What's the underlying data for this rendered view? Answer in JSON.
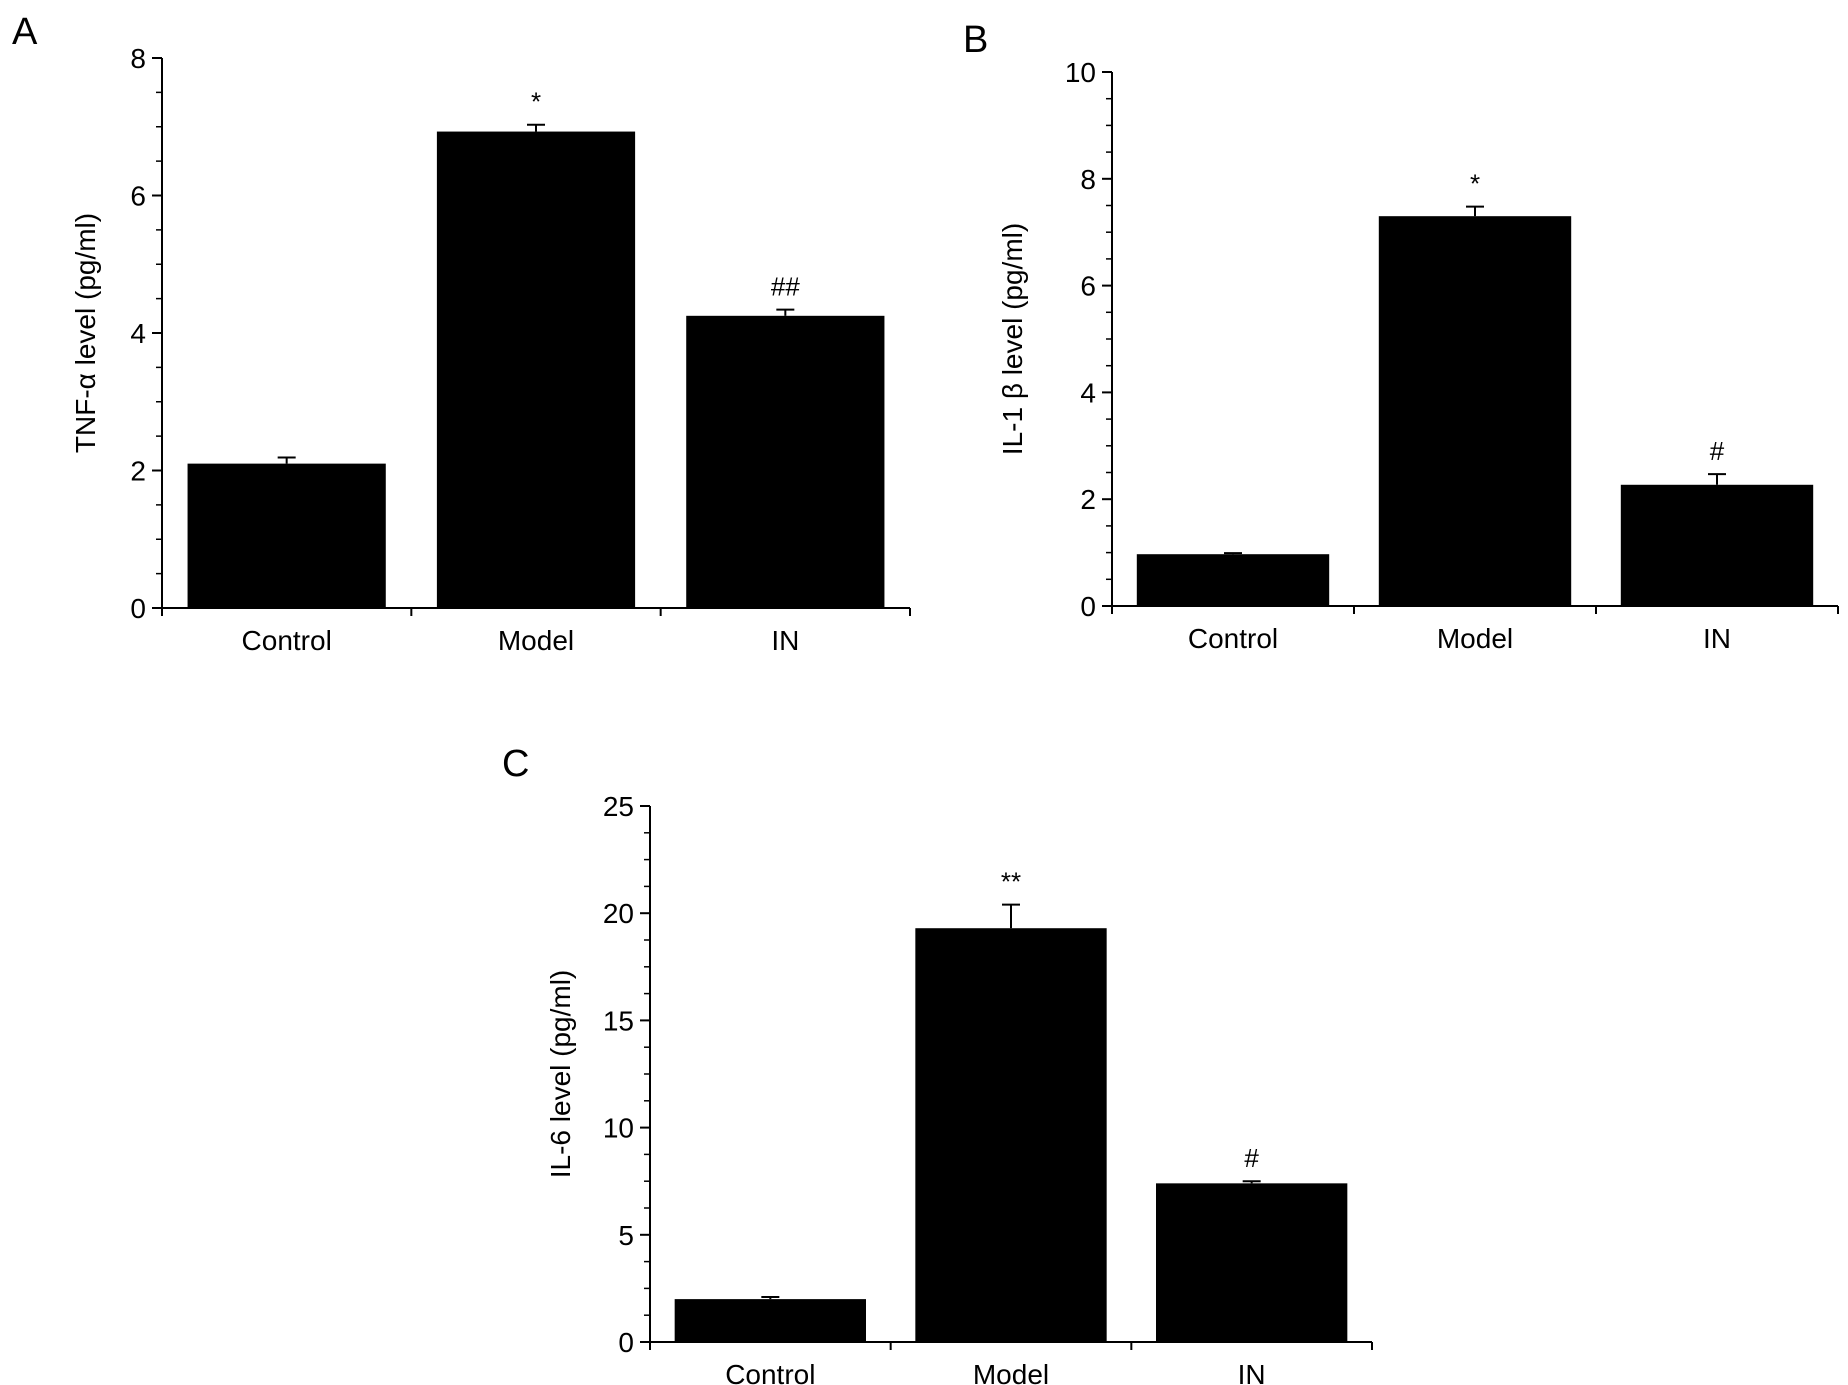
{
  "chart_data": [
    {
      "panel": "A",
      "type": "bar",
      "categories": [
        "Control",
        "Model",
        "IN"
      ],
      "values": [
        2.1,
        6.93,
        4.25
      ],
      "errors": [
        0.09,
        0.1,
        0.09
      ],
      "significance": [
        "",
        "*",
        "##"
      ],
      "ylabel": "TNF-α level (pg/ml)",
      "ylim": [
        0,
        8
      ],
      "yticks": [
        "0",
        "2",
        "4",
        "6",
        "8"
      ],
      "bar_color": "#000000"
    },
    {
      "panel": "B",
      "type": "bar",
      "categories": [
        "Control",
        "Model",
        "IN"
      ],
      "values": [
        0.97,
        7.3,
        2.27
      ],
      "errors": [
        0.02,
        0.18,
        0.2
      ],
      "significance": [
        "",
        "*",
        "#"
      ],
      "ylabel": "IL-1 β level (pg/ml)",
      "ylim": [
        0,
        10
      ],
      "yticks": [
        "0",
        "2",
        "4",
        "6",
        "8",
        "10"
      ],
      "bar_color": "#000000"
    },
    {
      "panel": "C",
      "type": "bar",
      "categories": [
        "Control",
        "Model",
        "IN"
      ],
      "values": [
        2.0,
        19.3,
        7.4
      ],
      "errors": [
        0.1,
        1.1,
        0.1
      ],
      "significance": [
        "",
        "**",
        "#"
      ],
      "ylabel": "IL-6 level (pg/ml)",
      "ylim": [
        0,
        25
      ],
      "yticks": [
        "0",
        "5",
        "10",
        "15",
        "20",
        "25"
      ],
      "bar_color": "#000000"
    }
  ]
}
